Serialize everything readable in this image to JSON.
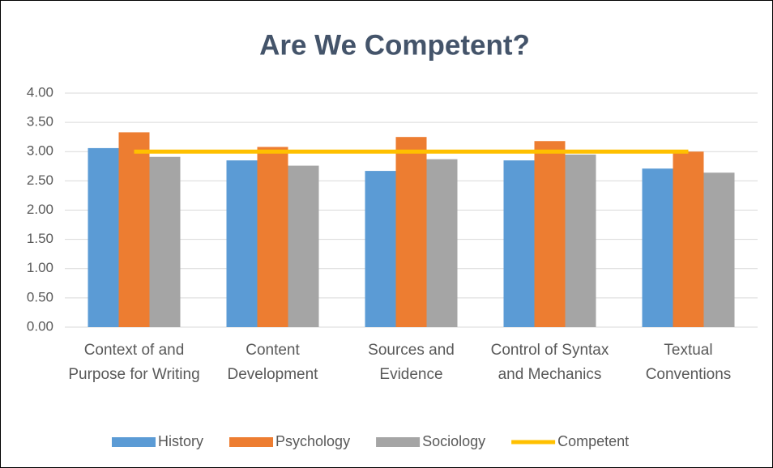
{
  "chart_data": {
    "type": "bar",
    "title": "Are We Competent?",
    "categories": [
      "Context of and Purpose for Writing",
      "Content Development",
      "Sources and Evidence",
      "Control of Syntax and Mechanics",
      "Textual Conventions"
    ],
    "series": [
      {
        "name": "History",
        "type": "bar",
        "color": "#5b9bd5",
        "values": [
          3.06,
          2.85,
          2.67,
          2.85,
          2.71
        ]
      },
      {
        "name": "Psychology",
        "type": "bar",
        "color": "#ed7d31",
        "values": [
          3.33,
          3.08,
          3.25,
          3.18,
          3.0
        ]
      },
      {
        "name": "Sociology",
        "type": "bar",
        "color": "#a5a5a5",
        "values": [
          2.91,
          2.76,
          2.87,
          2.95,
          2.64
        ]
      },
      {
        "name": "Competent",
        "type": "line",
        "color": "#ffc000",
        "values": [
          3,
          3,
          3,
          3,
          3
        ]
      }
    ],
    "ylim": [
      0,
      4
    ],
    "yticks": [
      {
        "value": 0,
        "label": "0.00"
      },
      {
        "value": 0.5,
        "label": "0.50"
      },
      {
        "value": 1,
        "label": "1.00"
      },
      {
        "value": 1.5,
        "label": "1.50"
      },
      {
        "value": 2,
        "label": "2.00"
      },
      {
        "value": 2.5,
        "label": "2.50"
      },
      {
        "value": 3,
        "label": "3.00"
      },
      {
        "value": 3.5,
        "label": "3.50"
      },
      {
        "value": 4,
        "label": "4.00"
      }
    ],
    "grid": true,
    "legend": "bottom"
  }
}
